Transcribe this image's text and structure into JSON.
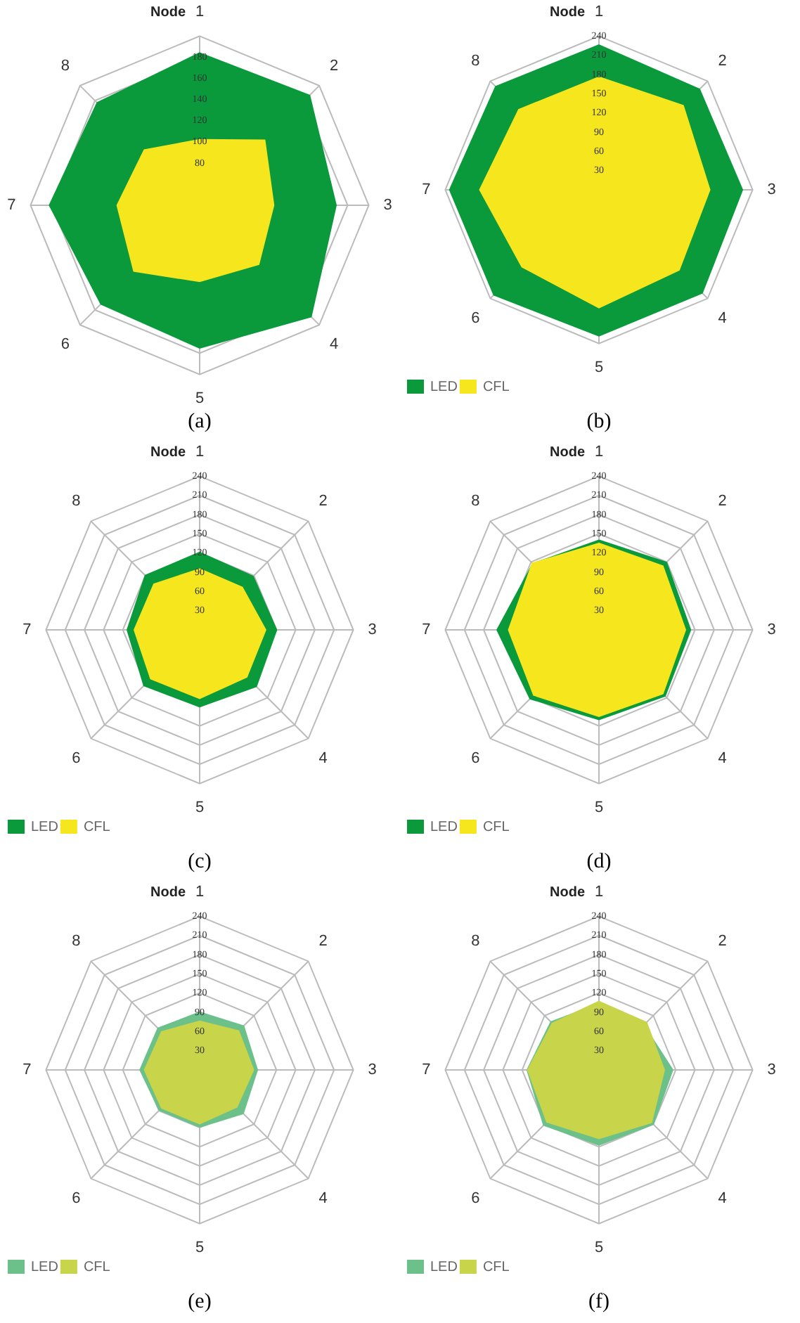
{
  "chart_data": [
    {
      "type": "radar",
      "title": "Node",
      "categories": [
        "1",
        "2",
        "3",
        "4",
        "5",
        "6",
        "7",
        "8"
      ],
      "ylim": [
        40,
        200
      ],
      "yticks": [
        80,
        100,
        120,
        140,
        160,
        180
      ],
      "grid": true,
      "marker": "none",
      "annotations": [
        "(a)"
      ],
      "series": [
        {
          "color": "#0a9a3c",
          "values": [
            184,
            187,
            169,
            189,
            175,
            172,
            182,
            177
          ]
        },
        {
          "color": "#f5e61e",
          "values": [
            102,
            127,
            110,
            119,
            112,
            128,
            118,
            114
          ]
        }
      ]
    },
    {
      "type": "radar",
      "title": "Node",
      "categories": [
        "1",
        "2",
        "3",
        "4",
        "5",
        "6",
        "7",
        "8"
      ],
      "ylim": [
        0,
        240
      ],
      "yticks": [
        30,
        60,
        90,
        120,
        150,
        180,
        210,
        240
      ],
      "grid": true,
      "marker": "none",
      "legend": "bottom left",
      "annotations": [
        "(b)"
      ],
      "series": [
        {
          "name": "LED",
          "color": "#0a9a3c",
          "values": [
            226,
            222,
            224,
            228,
            228,
            232,
            233,
            228
          ]
        },
        {
          "name": "CFL",
          "color": "#f5e61e",
          "values": [
            176,
            186,
            173,
            177,
            184,
            170,
            186,
            177
          ]
        }
      ]
    },
    {
      "type": "radar",
      "title": "Node",
      "categories": [
        "1",
        "2",
        "3",
        "4",
        "5",
        "6",
        "7",
        "8"
      ],
      "ylim": [
        0,
        240
      ],
      "yticks": [
        30,
        60,
        90,
        120,
        150,
        180,
        210,
        240
      ],
      "grid": true,
      "marker": "none",
      "legend": "bottom left",
      "annotations": [
        "(c)"
      ],
      "series": [
        {
          "name": "LED",
          "color": "#0a9a3c",
          "values": [
            121,
            118,
            120,
            125,
            120,
            123,
            113,
            120
          ]
        },
        {
          "name": "CFL",
          "color": "#f5e61e",
          "values": [
            95,
            94,
            103,
            104,
            107,
            108,
            102,
            101
          ]
        }
      ]
    },
    {
      "type": "radar",
      "title": "Node",
      "categories": [
        "1",
        "2",
        "3",
        "4",
        "5",
        "6",
        "7",
        "8"
      ],
      "ylim": [
        0,
        240
      ],
      "yticks": [
        30,
        60,
        90,
        120,
        150,
        180,
        210,
        240
      ],
      "grid": true,
      "marker": "none",
      "legend": "bottom left",
      "annotations": [
        "(d)"
      ],
      "series": [
        {
          "name": "LED",
          "color": "#0a9a3c",
          "values": [
            140,
            149,
            143,
            146,
            140,
            152,
            159,
            146
          ]
        },
        {
          "name": "CFL",
          "color": "#f5e61e",
          "values": [
            135,
            141,
            135,
            141,
            135,
            144,
            141,
            147
          ]
        }
      ]
    },
    {
      "type": "radar",
      "title": "Node",
      "categories": [
        "1",
        "2",
        "3",
        "4",
        "5",
        "6",
        "7",
        "8"
      ],
      "ylim": [
        0,
        240
      ],
      "yticks": [
        30,
        60,
        90,
        120,
        150,
        180,
        210,
        240
      ],
      "grid": true,
      "marker": "none",
      "legend": "bottom left",
      "annotations": [
        "(e)"
      ],
      "series": [
        {
          "name": "LED",
          "color": "#6cc08a",
          "values": [
            90,
            97,
            90,
            96,
            89,
            89,
            93,
            92
          ]
        },
        {
          "name": "CFL",
          "color": "#c8d44a",
          "values": [
            76,
            86,
            84,
            82,
            84,
            84,
            86,
            84
          ]
        }
      ]
    },
    {
      "type": "radar",
      "title": "Node",
      "categories": [
        "1",
        "2",
        "3",
        "4",
        "5",
        "6",
        "7",
        "8"
      ],
      "ylim": [
        0,
        240
      ],
      "yticks": [
        30,
        60,
        90,
        120,
        150,
        180,
        210,
        240
      ],
      "grid": true,
      "marker": "none",
      "legend": "bottom left",
      "annotations": [
        "(f)"
      ],
      "series": [
        {
          "name": "LED",
          "color": "#6cc08a",
          "values": [
            103,
            99,
            115,
            120,
            117,
            122,
            112,
            106
          ]
        },
        {
          "name": "CFL",
          "color": "#c8d44a",
          "values": [
            107,
            105,
            102,
            116,
            107,
            115,
            111,
            103
          ]
        }
      ]
    }
  ]
}
